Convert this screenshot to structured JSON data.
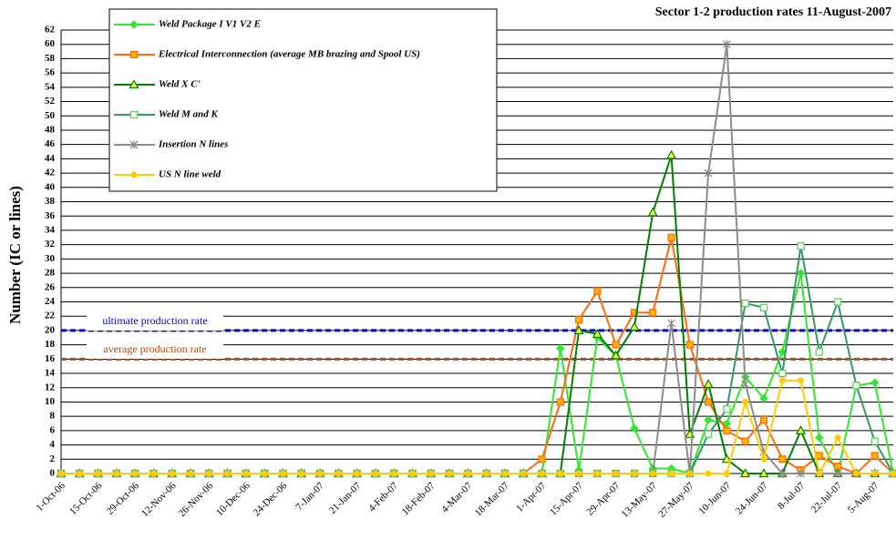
{
  "chart_data": {
    "type": "line",
    "title": "Sector 1-2 production rates 11-August-2007",
    "y_label": "Number (IC or lines)",
    "categories": [
      "1-Oct-06",
      null,
      "15-Oct-06",
      null,
      "29-Oct-06",
      null,
      "12-Nov-06",
      null,
      "26-Nov-06",
      null,
      "10-Dec-06",
      null,
      "24-Dec-06",
      null,
      "7-Jan-07",
      null,
      "21-Jan-07",
      null,
      "4-Feb-07",
      null,
      "18-Feb-07",
      null,
      "4-Mar-07",
      null,
      "18-Mar-07",
      null,
      "1-Apr-07",
      null,
      "15-Apr-07",
      null,
      "29-Apr-07",
      null,
      "13-May-07",
      null,
      "27-May-07",
      null,
      "10-Jun-07",
      null,
      "24-Jun-07",
      null,
      "8-Jul-07",
      null,
      "22-Jul-07",
      null,
      "5-Aug-07",
      null
    ],
    "series": [
      {
        "name": "Weld Package I V1 V2  E",
        "color": "#33e633",
        "marker": "diamond",
        "values": [
          0,
          0,
          0,
          0,
          0,
          0,
          0,
          0,
          0,
          0,
          0,
          0,
          0,
          0,
          0,
          0,
          0,
          0,
          0,
          0,
          0,
          0,
          0,
          0,
          0,
          0,
          0,
          17.5,
          0.5,
          19,
          16.5,
          6.3,
          0.7,
          0.7,
          0,
          7.5,
          7,
          13.5,
          10.5,
          17,
          28,
          5,
          0,
          12.3,
          12.7,
          0
        ]
      },
      {
        "name": "Electrical Interconnection (average MB brazing and Spool US)",
        "color": "#ff6a10",
        "marker": "square",
        "values": [
          0,
          0,
          0,
          0,
          0,
          0,
          0,
          0,
          0,
          0,
          0,
          0,
          0,
          0,
          0,
          0,
          0,
          0,
          0,
          0,
          0,
          0,
          0,
          0,
          0,
          0,
          2,
          10,
          21.5,
          25.5,
          18,
          22.5,
          22.5,
          33,
          18,
          10,
          6,
          4.5,
          7.5,
          2,
          0.5,
          2.5,
          1,
          0,
          2.5,
          0
        ]
      },
      {
        "name": "Weld  X C'",
        "color": "#008000",
        "marker": "triangle",
        "values": [
          0,
          0,
          0,
          0,
          0,
          0,
          0,
          0,
          0,
          0,
          0,
          0,
          0,
          0,
          0,
          0,
          0,
          0,
          0,
          0,
          0,
          0,
          0,
          0,
          0,
          0,
          0,
          0,
          20,
          19.5,
          16.5,
          20.5,
          36.5,
          44.5,
          5.5,
          12.5,
          2,
          0,
          0,
          0,
          6,
          0,
          0,
          0,
          0,
          0
        ]
      },
      {
        "name": "Weld M and K",
        "color": "#339966",
        "marker": "square-open",
        "values": [
          0,
          0,
          0,
          0,
          0,
          0,
          0,
          0,
          0,
          0,
          0,
          0,
          0,
          0,
          0,
          0,
          0,
          0,
          0,
          0,
          0,
          0,
          0,
          0,
          0,
          0,
          0,
          0,
          0,
          0,
          0,
          0,
          0,
          0,
          0,
          5.5,
          9,
          23.8,
          23.2,
          14,
          31.8,
          17,
          24,
          12.3,
          4.5,
          0
        ]
      },
      {
        "name": "Insertion N lines",
        "color": "#8c8c8c",
        "marker": "star",
        "values": [
          0,
          0,
          0,
          0,
          0,
          0,
          0,
          0,
          0,
          0,
          0,
          0,
          0,
          0,
          0,
          0,
          0,
          0,
          0,
          0,
          0,
          0,
          0,
          0,
          0,
          0,
          0,
          0,
          0,
          0,
          0,
          0,
          0,
          21,
          0,
          42,
          60,
          12.5,
          3,
          0,
          0,
          0,
          0,
          0,
          0,
          0
        ]
      },
      {
        "name": "US N line weld",
        "color": "#ffcc00",
        "marker": "circle",
        "values": [
          0,
          0,
          0,
          0,
          0,
          0,
          0,
          0,
          0,
          0,
          0,
          0,
          0,
          0,
          0,
          0,
          0,
          0,
          0,
          0,
          0,
          0,
          0,
          0,
          0,
          0,
          0,
          0,
          0,
          0,
          0,
          0,
          0,
          0,
          0,
          0,
          0,
          10,
          2,
          13,
          13,
          0,
          5,
          0,
          0,
          0
        ]
      }
    ],
    "reference_lines": [
      {
        "value": 20,
        "label": "ultimate production rate",
        "color": "#0000dd"
      },
      {
        "value": 16,
        "label": "average production rate",
        "color": "#b04a10"
      }
    ],
    "ylim": [
      0,
      62
    ],
    "yticks": [
      0,
      2,
      4,
      6,
      8,
      10,
      12,
      14,
      16,
      18,
      20,
      22,
      24,
      26,
      28,
      30,
      32,
      34,
      36,
      38,
      40,
      42,
      44,
      46,
      48,
      50,
      52,
      54,
      56,
      58,
      60,
      62
    ],
    "grid": true,
    "legend": "upper left"
  }
}
